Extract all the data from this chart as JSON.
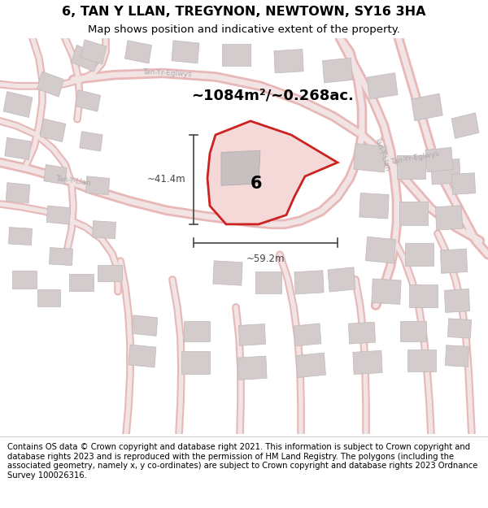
{
  "title": "6, TAN Y LLAN, TREGYNON, NEWTOWN, SY16 3HA",
  "subtitle": "Map shows position and indicative extent of the property.",
  "footer": "Contains OS data © Crown copyright and database right 2021. This information is subject to Crown copyright and database rights 2023 and is reproduced with the permission of HM Land Registry. The polygons (including the associated geometry, namely x, y co-ordinates) are subject to Crown copyright and database rights 2023 Ordnance Survey 100026316.",
  "area_text": "~1084m²/~0.268ac.",
  "label_6": "6",
  "dim_h": "~41.4m",
  "dim_w": "~59.2m",
  "map_bg": "#f7f2f2",
  "road_fill": "#f2e4e4",
  "road_edge": "#e8b8b8",
  "building_fill": "#d4cccc",
  "building_edge": "#c0b8b8",
  "prop_fill": "#f5d8d8",
  "prop_edge": "#cc2222",
  "street_color": "#aaaaaa",
  "dim_color": "#444444",
  "title_fontsize": 11.5,
  "subtitle_fontsize": 9.5,
  "footer_fontsize": 7.2,
  "area_fontsize": 13,
  "label_fontsize": 15,
  "dim_fontsize": 8.5,
  "street_fontsize": 6.5
}
